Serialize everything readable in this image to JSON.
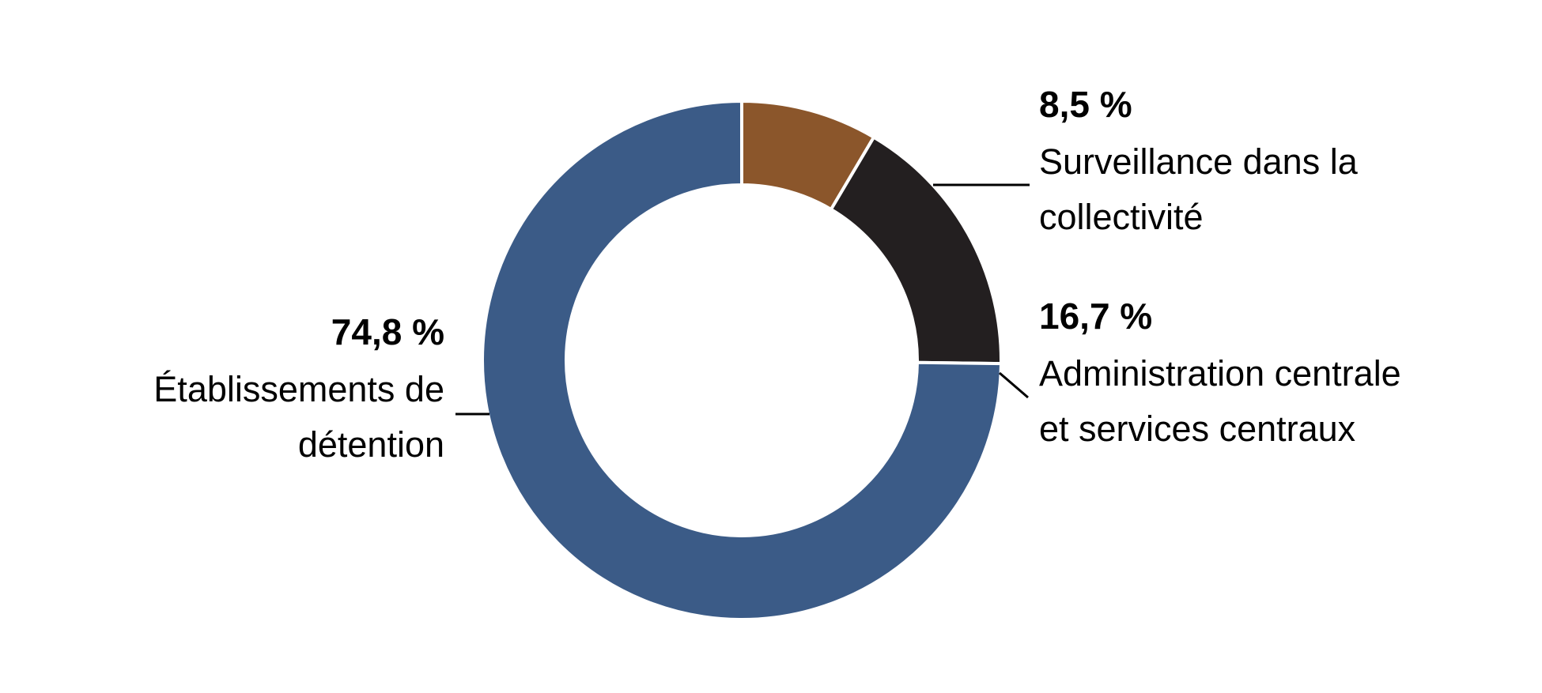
{
  "chart_data": {
    "type": "pie",
    "variant": "donut",
    "unit": "%",
    "start": "12 o'clock",
    "direction": "clockwise",
    "slices": [
      {
        "value": 8.5,
        "value_label": "8,5 %",
        "label_lines": [
          "Surveillance dans la",
          "collectivité"
        ],
        "color": "#8b562b"
      },
      {
        "value": 16.7,
        "value_label": "16,7 %",
        "label_lines": [
          "Administration centrale",
          "et services centraux"
        ],
        "color": "#231f20"
      },
      {
        "value": 74.8,
        "value_label": "74,8 %",
        "label_lines": [
          "Établissements de",
          "détention"
        ],
        "color": "#3b5b87"
      }
    ],
    "title": "",
    "legend": "none"
  }
}
